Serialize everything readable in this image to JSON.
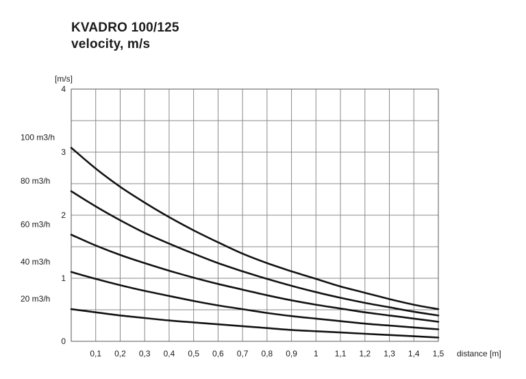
{
  "chart_data": {
    "type": "line",
    "title": "KVADRO 100/125",
    "subtitle": "velocity, m/s",
    "ylabel": "[m/s]",
    "xlabel": "distance [m]",
    "xlim": [
      0,
      1.5
    ],
    "ylim": [
      0,
      4
    ],
    "x_ticks": [
      "0,1",
      "0,2",
      "0,3",
      "0,4",
      "0,5",
      "0,6",
      "0,7",
      "0,8",
      "0,9",
      "1",
      "1,1",
      "1,2",
      "1,3",
      "1,4",
      "1,5"
    ],
    "y_ticks": [
      "0",
      "1",
      "2",
      "3",
      "4"
    ],
    "grid": true,
    "x": [
      0,
      0.1,
      0.2,
      0.3,
      0.4,
      0.5,
      0.6,
      0.7,
      0.8,
      0.9,
      1.0,
      1.1,
      1.2,
      1.3,
      1.4,
      1.5
    ],
    "series": [
      {
        "name": "100 m3/h",
        "values": [
          3.07,
          2.74,
          2.45,
          2.2,
          1.97,
          1.76,
          1.57,
          1.39,
          1.24,
          1.11,
          0.99,
          0.87,
          0.77,
          0.67,
          0.58,
          0.51
        ]
      },
      {
        "name": "80 m3/h",
        "values": [
          2.38,
          2.14,
          1.92,
          1.72,
          1.55,
          1.39,
          1.24,
          1.11,
          0.99,
          0.88,
          0.78,
          0.69,
          0.61,
          0.54,
          0.47,
          0.41
        ]
      },
      {
        "name": "60 m3/h",
        "values": [
          1.69,
          1.52,
          1.37,
          1.24,
          1.12,
          1.01,
          0.91,
          0.82,
          0.73,
          0.65,
          0.58,
          0.52,
          0.46,
          0.41,
          0.36,
          0.31
        ]
      },
      {
        "name": "40 m3/h",
        "values": [
          1.1,
          0.99,
          0.89,
          0.8,
          0.72,
          0.64,
          0.57,
          0.51,
          0.45,
          0.4,
          0.36,
          0.32,
          0.28,
          0.25,
          0.22,
          0.19
        ]
      },
      {
        "name": "20 m3/h",
        "values": [
          0.51,
          0.46,
          0.41,
          0.37,
          0.33,
          0.3,
          0.27,
          0.24,
          0.21,
          0.18,
          0.16,
          0.14,
          0.12,
          0.1,
          0.08,
          0.06
        ]
      }
    ]
  }
}
